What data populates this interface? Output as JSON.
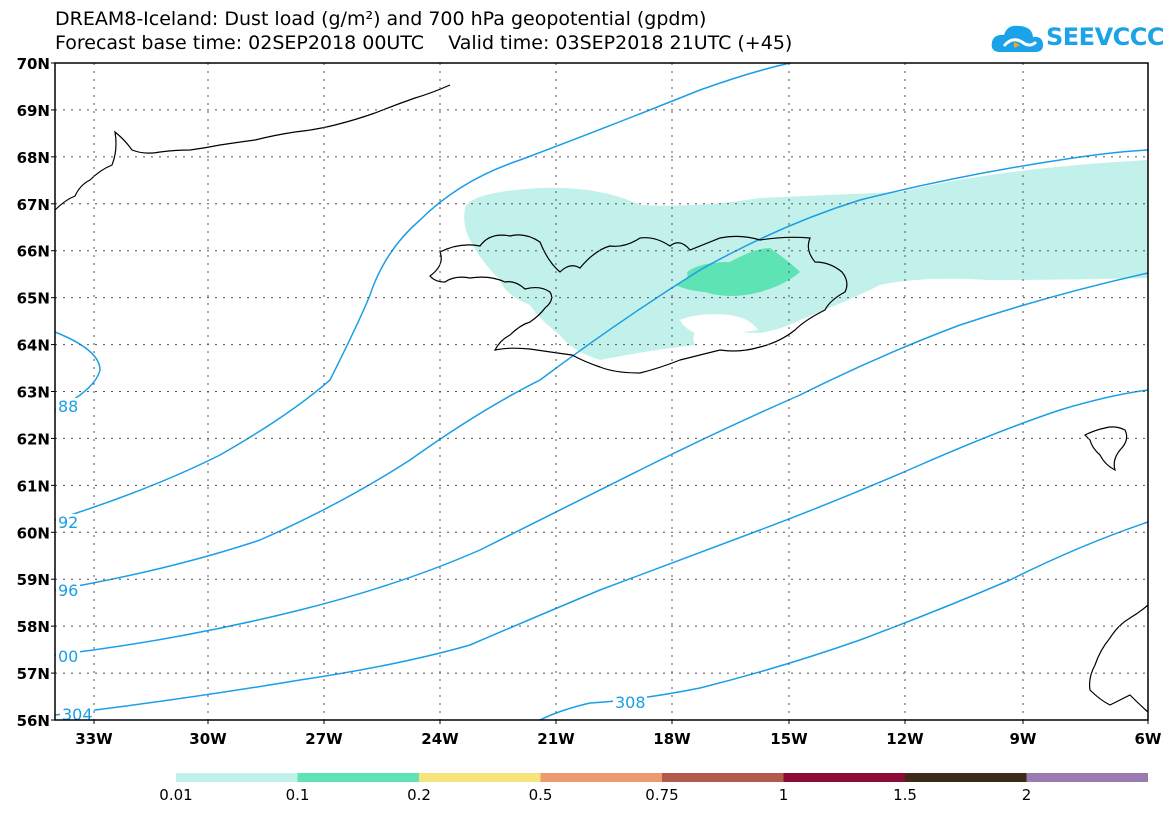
{
  "title": {
    "line1": "DREAM8-Iceland: Dust load (g/m²) and 700 hPa geopotential (gpdm)",
    "line2": "Forecast base time: 02SEP2018 00UTC    Valid time: 03SEP2018 21UTC (+45)"
  },
  "logo": {
    "text": "SEEVCCC"
  },
  "map": {
    "lat_labels": [
      "70N",
      "69N",
      "68N",
      "67N",
      "66N",
      "65N",
      "64N",
      "63N",
      "62N",
      "61N",
      "60N",
      "59N",
      "58N",
      "57N",
      "56N"
    ],
    "lon_labels": [
      "33W",
      "30W",
      "27W",
      "24W",
      "21W",
      "18W",
      "15W",
      "12W",
      "9W",
      "6W"
    ],
    "contour_labels": [
      "88",
      "92",
      "96",
      "00",
      "304",
      "308"
    ],
    "contour_color": "#1a9ee6",
    "coast_color": "#000000"
  },
  "colorbar": {
    "colors": [
      "#c2f0ea",
      "#5ee3b4",
      "#f7e47a",
      "#ec9a6e",
      "#b45a4c",
      "#8c0a36",
      "#3e2a18",
      "#9a7ab0"
    ],
    "labels": [
      "0.01",
      "0.1",
      "0.2",
      "0.5",
      "0.75",
      "1",
      "1.5",
      "2"
    ]
  }
}
